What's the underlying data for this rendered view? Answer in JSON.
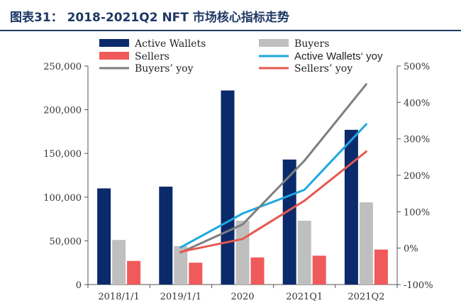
{
  "header": {
    "title": "图表31： 2018-2021Q2 NFT 市场核心指标走势"
  },
  "chart_data": {
    "type": "bar",
    "categories": [
      "2018/1/1",
      "2019/1/1",
      "2020",
      "2021Q1",
      "2021Q2"
    ],
    "series": [
      {
        "name": "Active Wallets",
        "kind": "bar",
        "axis": "left",
        "color": "#0b2a6b",
        "values": [
          110000,
          112000,
          222000,
          143000,
          177000
        ]
      },
      {
        "name": "Buyers",
        "kind": "bar",
        "axis": "left",
        "color": "#bfbfbf",
        "values": [
          51000,
          44000,
          73000,
          73000,
          94000
        ]
      },
      {
        "name": "Sellers",
        "kind": "bar",
        "axis": "left",
        "color": "#f05a5a",
        "values": [
          27000,
          25000,
          31000,
          33000,
          40000
        ]
      },
      {
        "name": "Active Wallets' yoy",
        "kind": "line",
        "axis": "right",
        "color": "#1ea7e1",
        "values": [
          null,
          2,
          95,
          160,
          340
        ]
      },
      {
        "name": "Buyers' yoy",
        "kind": "line",
        "axis": "right",
        "color": "#7f7f7f",
        "values": [
          null,
          -12,
          65,
          240,
          450
        ]
      },
      {
        "name": "Sellers' yoy",
        "kind": "line",
        "axis": "right",
        "color": "#e8574f",
        "values": [
          null,
          -10,
          25,
          130,
          265
        ]
      }
    ],
    "ylim_left": [
      0,
      250000
    ],
    "yticks_left": [
      "0",
      "50,000",
      "100,000",
      "150,000",
      "200,000",
      "250,000"
    ],
    "ylim_right": [
      -100,
      500
    ],
    "yticks_right": [
      "-100%",
      "0%",
      "100%",
      "200%",
      "300%",
      "400%",
      "500%"
    ],
    "legend": {
      "placement": "top",
      "items": [
        {
          "label": "Active Wallets",
          "marker": "box",
          "color": "#0b2a6b"
        },
        {
          "label": "Buyers",
          "marker": "box",
          "color": "#bfbfbf"
        },
        {
          "label": "Sellers",
          "marker": "box",
          "color": "#f05a5a"
        },
        {
          "label": "Active Wallets‘ yoy",
          "marker": "line",
          "color": "#1ea7e1"
        },
        {
          "label": "Buyers’ yoy",
          "marker": "line",
          "color": "#7f7f7f"
        },
        {
          "label": "Sellers’ yoy",
          "marker": "line",
          "color": "#e8574f"
        }
      ]
    },
    "grid": false
  }
}
